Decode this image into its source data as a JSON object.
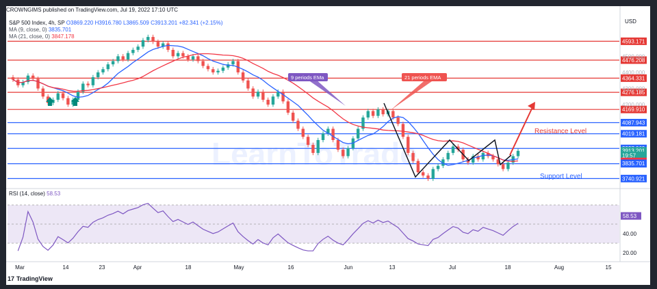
{
  "header": {
    "publish_line": "CROWNGIMS published on TradingView.com, Jul 19, 2022 17:10 UTC",
    "symbol": "S&P 500 Index, 4h, SP",
    "open": "O3869.220",
    "high": "H3916.780",
    "low": "L3865.509",
    "close": "C3913.201",
    "change": "+82.341 (+2.15%)",
    "ma9_label": "MA (9, close, 0)",
    "ma9_value": "3835.701",
    "ma21_label": "MA (21, close, 0)",
    "ma21_value": "3847.178",
    "currency": "USD",
    "rsi_label": "RSI (14, close)",
    "rsi_value": "58.53"
  },
  "footer": {
    "brand": "TradingView",
    "logo_text": "17"
  },
  "annotations": {
    "ema9": "9 periods EMa",
    "ema21": "21 periods EMA",
    "resistance": "Resistance Level",
    "support": "Support Level",
    "watermark": "LearnToTrade"
  },
  "colors": {
    "bull": "#26a69a",
    "bear": "#ef5350",
    "ma9": "#2962ff",
    "ma21": "#f23645",
    "level": "#2962ff",
    "redline": "#e53935",
    "rsi": "#7e57c2",
    "rsi_band": "#ede7f6"
  },
  "chart_data": {
    "type": "candlestick",
    "ylim": [
      3700,
      4650
    ],
    "rsi_ylim": [
      15,
      85
    ],
    "x_ticks": [
      "Mar",
      "14",
      "23",
      "Apr",
      "18",
      "May",
      "16",
      "Jun",
      "13",
      "Jul",
      "18",
      "Aug",
      "15"
    ],
    "price_levels": [
      {
        "value": 4593.171,
        "label": "4593.171",
        "color": "#e53935"
      },
      {
        "value": 4476.208,
        "label": "4476.208",
        "color": "#e53935"
      },
      {
        "value": 4364.331,
        "label": "4364.331",
        "color": "#e53935"
      },
      {
        "value": 4276.185,
        "label": "4276.185",
        "color": "#e53935"
      },
      {
        "value": 4169.91,
        "label": "4169.910",
        "color": "#e53935"
      },
      {
        "value": 4087.943,
        "label": "4087.943",
        "color": "#2962ff"
      },
      {
        "value": 4019.181,
        "label": "4019.181",
        "color": "#2962ff"
      },
      {
        "value": 3927.969,
        "label": "3927.969",
        "color": "#2962ff"
      },
      {
        "value": 3832.981,
        "label": "3832.981",
        "color": "#2962ff"
      },
      {
        "value": 3740.921,
        "label": "3740.921",
        "color": "#2962ff"
      }
    ],
    "axis_ticks": [
      "4500.000",
      "4400.000",
      "4300.000",
      "4200.000"
    ],
    "price_tags": [
      {
        "label": "3913.201",
        "value": 3913.201,
        "color": "#26a69a"
      },
      {
        "label": "19:57",
        "value": 3885,
        "color": "#26a69a"
      },
      {
        "label": "3847.178",
        "value": 3847.178,
        "color": "#f23645"
      },
      {
        "label": "3835.701",
        "value": 3835.701,
        "color": "#2962ff"
      }
    ],
    "rsi_ticks": [
      "40.00",
      "20.00"
    ],
    "rsi_levels": [
      70,
      50,
      30
    ],
    "candles": [
      [
        4370,
        4355
      ],
      [
        4355,
        4320
      ],
      [
        4320,
        4340
      ],
      [
        4340,
        4380
      ],
      [
        4380,
        4360
      ],
      [
        4360,
        4300
      ],
      [
        4300,
        4250
      ],
      [
        4250,
        4210
      ],
      [
        4210,
        4230
      ],
      [
        4230,
        4270
      ],
      [
        4270,
        4240
      ],
      [
        4240,
        4200
      ],
      [
        4200,
        4230
      ],
      [
        4230,
        4280
      ],
      [
        4280,
        4330
      ],
      [
        4330,
        4320
      ],
      [
        4320,
        4370
      ],
      [
        4370,
        4400
      ],
      [
        4400,
        4420
      ],
      [
        4420,
        4450
      ],
      [
        4450,
        4470
      ],
      [
        4470,
        4500
      ],
      [
        4500,
        4480
      ],
      [
        4480,
        4520
      ],
      [
        4520,
        4540
      ],
      [
        4540,
        4560
      ],
      [
        4560,
        4600
      ],
      [
        4600,
        4620
      ],
      [
        4620,
        4590
      ],
      [
        4590,
        4560
      ],
      [
        4560,
        4580
      ],
      [
        4580,
        4540
      ],
      [
        4540,
        4500
      ],
      [
        4500,
        4520
      ],
      [
        4520,
        4500
      ],
      [
        4500,
        4480
      ],
      [
        4480,
        4500
      ],
      [
        4500,
        4470
      ],
      [
        4470,
        4440
      ],
      [
        4440,
        4420
      ],
      [
        4420,
        4400
      ],
      [
        4400,
        4410
      ],
      [
        4410,
        4430
      ],
      [
        4430,
        4450
      ],
      [
        4450,
        4470
      ],
      [
        4470,
        4400
      ],
      [
        4400,
        4350
      ],
      [
        4350,
        4300
      ],
      [
        4300,
        4250
      ],
      [
        4250,
        4280
      ],
      [
        4280,
        4230
      ],
      [
        4230,
        4200
      ],
      [
        4200,
        4250
      ],
      [
        4250,
        4280
      ],
      [
        4280,
        4220
      ],
      [
        4220,
        4150
      ],
      [
        4150,
        4100
      ],
      [
        4100,
        4050
      ],
      [
        4050,
        4000
      ],
      [
        4000,
        3950
      ],
      [
        3950,
        3900
      ],
      [
        3900,
        3980
      ],
      [
        3980,
        4020
      ],
      [
        4020,
        4050
      ],
      [
        4050,
        3980
      ],
      [
        3980,
        3920
      ],
      [
        3920,
        3880
      ],
      [
        3880,
        3930
      ],
      [
        3930,
        3990
      ],
      [
        3990,
        4050
      ],
      [
        4050,
        4120
      ],
      [
        4120,
        4160
      ],
      [
        4160,
        4130
      ],
      [
        4130,
        4170
      ],
      [
        4170,
        4140
      ],
      [
        4140,
        4160
      ],
      [
        4160,
        4120
      ],
      [
        4120,
        4080
      ],
      [
        4080,
        4000
      ],
      [
        4000,
        3900
      ],
      [
        3900,
        3850
      ],
      [
        3850,
        3780
      ],
      [
        3780,
        3760
      ],
      [
        3760,
        3740
      ],
      [
        3740,
        3800
      ],
      [
        3800,
        3820
      ],
      [
        3820,
        3860
      ],
      [
        3860,
        3900
      ],
      [
        3900,
        3940
      ],
      [
        3940,
        3920
      ],
      [
        3920,
        3860
      ],
      [
        3860,
        3840
      ],
      [
        3840,
        3880
      ],
      [
        3880,
        3860
      ],
      [
        3860,
        3900
      ],
      [
        3900,
        3880
      ],
      [
        3880,
        3860
      ],
      [
        3860,
        3830
      ],
      [
        3830,
        3800
      ],
      [
        3800,
        3840
      ],
      [
        3840,
        3880
      ],
      [
        3880,
        3913
      ]
    ]
  }
}
